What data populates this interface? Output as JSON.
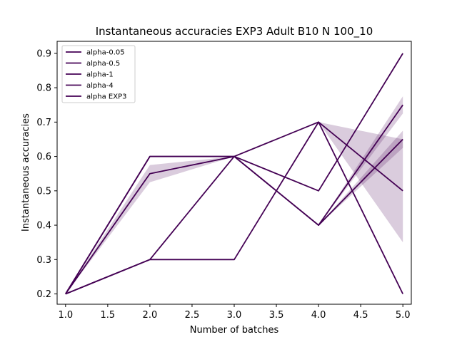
{
  "chart_data": {
    "type": "line",
    "title": "Instantaneous accuracies EXP3 Adult B10 N 100_10",
    "xlabel": "Number of batches",
    "ylabel": "Instantaneous accuracies",
    "xlim": [
      0.9,
      5.1
    ],
    "ylim": [
      0.17,
      0.935
    ],
    "xticks": [
      1.0,
      1.5,
      2.0,
      2.5,
      3.0,
      3.5,
      4.0,
      4.5,
      5.0
    ],
    "xtick_labels": [
      "1.0",
      "1.5",
      "2.0",
      "2.5",
      "3.0",
      "3.5",
      "4.0",
      "4.5",
      "5.0"
    ],
    "yticks": [
      0.2,
      0.3,
      0.4,
      0.5,
      0.6,
      0.7,
      0.8,
      0.9
    ],
    "ytick_labels": [
      "0.2",
      "0.3",
      "0.4",
      "0.5",
      "0.6",
      "0.7",
      "0.8",
      "0.9"
    ],
    "legend_position": "top-left",
    "grid": false,
    "line_color": "#440154",
    "band_color": "#440154",
    "series": [
      {
        "name": "alpha-0.05",
        "x": [
          1,
          2,
          3,
          4,
          5
        ],
        "y": [
          0.2,
          0.6,
          0.6,
          0.7,
          0.2
        ]
      },
      {
        "name": "alpha-0.5",
        "x": [
          1,
          2,
          3,
          4,
          5
        ],
        "y": [
          0.2,
          0.55,
          0.6,
          0.4,
          0.75
        ],
        "band_low": [
          0.2,
          0.525,
          0.6,
          0.4,
          0.725
        ],
        "band_high": [
          0.2,
          0.575,
          0.6,
          0.4,
          0.775
        ]
      },
      {
        "name": "alpha-1",
        "x": [
          1,
          2,
          3,
          4,
          5
        ],
        "y": [
          0.2,
          0.3,
          0.3,
          0.7,
          0.5
        ],
        "band_low": [
          0.2,
          0.3,
          0.3,
          0.7,
          0.35
        ],
        "band_high": [
          0.2,
          0.3,
          0.3,
          0.7,
          0.65
        ]
      },
      {
        "name": "alpha-4",
        "x": [
          1,
          2,
          3,
          4,
          5
        ],
        "y": [
          0.2,
          0.3,
          0.6,
          0.5,
          0.9
        ]
      },
      {
        "name": "alpha EXP3",
        "x": [
          1,
          2,
          3,
          4,
          5
        ],
        "y": [
          0.2,
          0.6,
          0.6,
          0.4,
          0.65
        ],
        "band_low": [
          0.2,
          0.6,
          0.6,
          0.4,
          0.625
        ],
        "band_high": [
          0.2,
          0.6,
          0.6,
          0.4,
          0.675
        ]
      }
    ]
  }
}
